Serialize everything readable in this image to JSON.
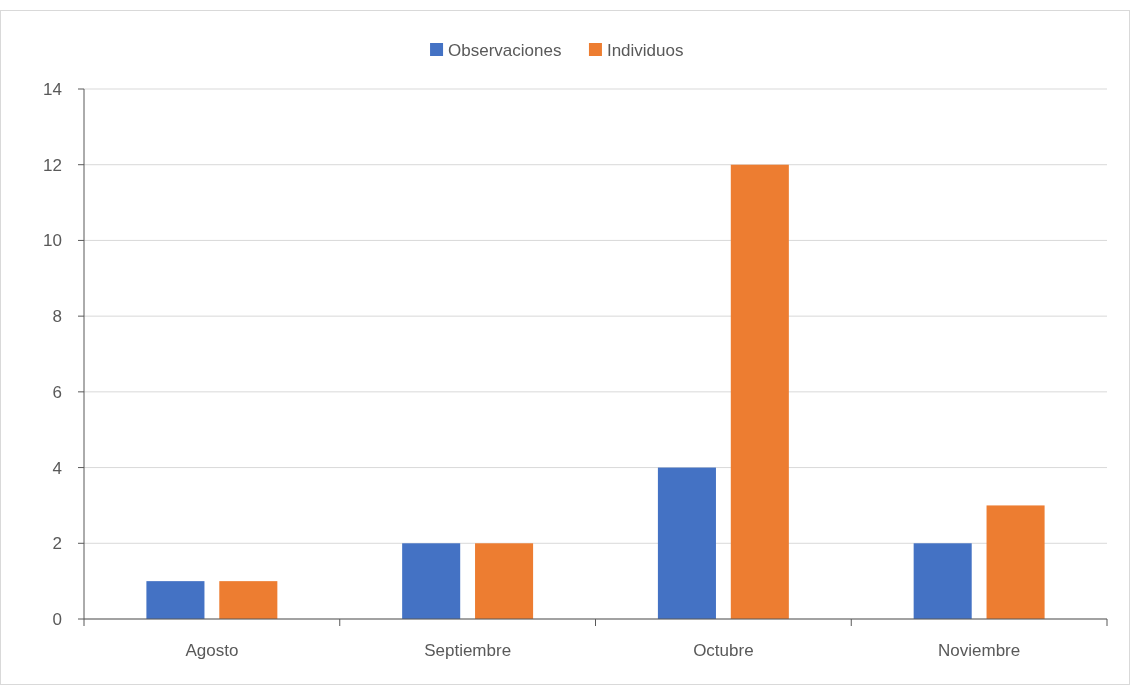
{
  "chart_data": {
    "type": "bar",
    "categories": [
      "Agosto",
      "Septiembre",
      "Octubre",
      "Noviembre"
    ],
    "series": [
      {
        "name": "Observaciones",
        "color": "#4472c4",
        "values": [
          1,
          2,
          4,
          2
        ]
      },
      {
        "name": "Individuos",
        "color": "#ed7d31",
        "values": [
          1,
          2,
          12,
          3
        ]
      }
    ],
    "ylim": [
      0,
      14
    ],
    "yticks": [
      0,
      2,
      4,
      6,
      8,
      10,
      12,
      14
    ],
    "grid": "y",
    "legend": "top"
  }
}
